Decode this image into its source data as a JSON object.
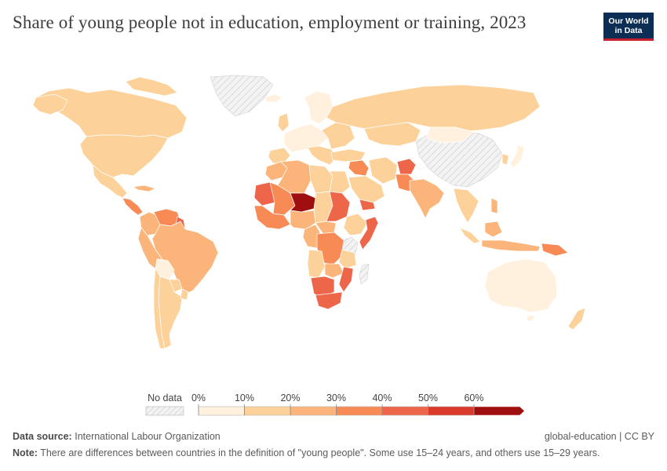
{
  "title": "Share of young people not in education, employment or training, 2023",
  "logo": {
    "line1": "Our World",
    "line2": "in Data",
    "bg": "#0c2e54",
    "accent": "#c8202f"
  },
  "colors": {
    "land_default": "#fdd7a7",
    "no_data_fill": "#efefef",
    "no_data_stroke": "#d0d0d0",
    "border": "#ffffff",
    "scale": [
      "#fff1dd",
      "#fdd29a",
      "#fbb57a",
      "#f88b55",
      "#ee6649",
      "#d93a2b",
      "#a00f0f"
    ]
  },
  "legend": {
    "no_data_label": "No data",
    "ticks": [
      "0%",
      "10%",
      "20%",
      "30%",
      "40%",
      "50%",
      "60%"
    ]
  },
  "footer": {
    "source_label": "Data source:",
    "source_text": "International Labour Organization",
    "credit": "global-education | CC BY",
    "note_label": "Note:",
    "note_text": "There are differences between countries in the definition of \"young people\". Some use 15–24 years, and others use 15–29 years."
  }
}
